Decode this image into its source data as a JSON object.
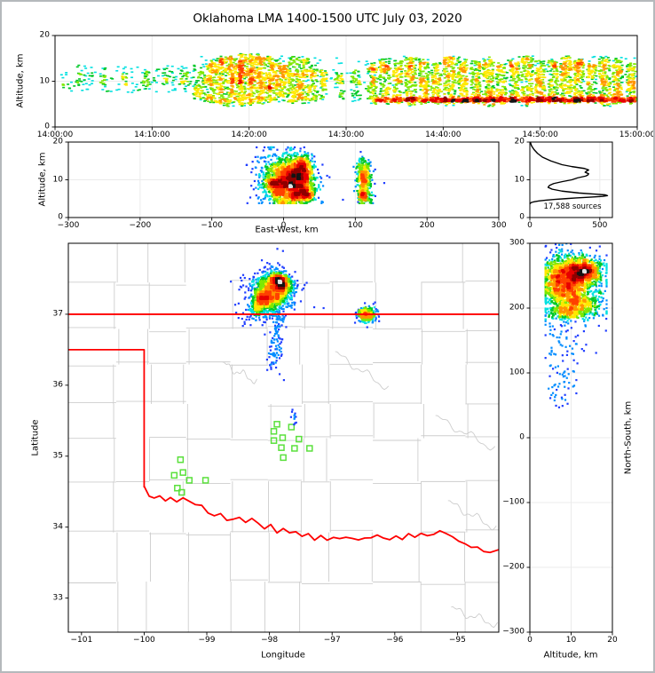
{
  "title": "Oklahoma LMA 1400-1500 UTC July 03, 2020",
  "colors": {
    "background": "#ffffff",
    "frame": "#000000",
    "grid": "#ebebeb",
    "county_lines": "#cdcdcd",
    "state_border": "#ff0000",
    "stations": "#5ae03c",
    "histogram_line": "#000000",
    "density_stops": [
      "#9400ff",
      "#1f3dff",
      "#008cff",
      "#00e0e0",
      "#00c828",
      "#7fe800",
      "#ffe800",
      "#ff9500",
      "#ff4000",
      "#e60000",
      "#8f0000",
      "#141414"
    ],
    "density_stops_time": [
      "#1f6aff",
      "#00a2ff",
      "#00e0e0",
      "#00c828",
      "#7fe800",
      "#ffe800",
      "#ff9500",
      "#ff4000",
      "#e60000",
      "#8f0000",
      "#141414"
    ],
    "core_white": "#e3e3e3"
  },
  "chart_data": [
    {
      "id": "time_height",
      "type": "scatter",
      "description": "VHF source altitude vs time, colored by point density",
      "xlabel": "",
      "ylabel": "Altitude, km",
      "x_units": "seconds after 14:00:00 UTC",
      "xlim": [
        0,
        3600
      ],
      "ylim": [
        0,
        20
      ],
      "xticks": {
        "values": [
          0,
          600,
          1200,
          1800,
          2400,
          3000,
          3600
        ],
        "labels": [
          "14:00:00",
          "14:10:00",
          "14:20:00",
          "14:30:00",
          "14:40:00",
          "14:50:00",
          "15:00:00"
        ]
      },
      "yticks": {
        "values": [
          0,
          10,
          20
        ],
        "labels": [
          "0",
          "10",
          "20"
        ]
      },
      "background_scatter": [
        {
          "t_range": [
            30,
            900
          ],
          "alt_range": [
            7.5,
            13.5
          ],
          "n": 130
        },
        {
          "t_range": [
            900,
            3600
          ],
          "alt_range": [
            6.0,
            15.5
          ],
          "n": 300
        }
      ],
      "low_band": {
        "t_range": [
          1980,
          3600
        ],
        "alt_range": [
          5.4,
          6.5
        ],
        "n": 900
      },
      "streaks": [
        [
          150,
          15,
          9,
          12.5,
          12
        ],
        [
          300,
          20,
          8.5,
          13,
          18
        ],
        [
          430,
          15,
          9,
          12,
          14
        ],
        [
          560,
          20,
          8,
          12.5,
          20
        ],
        [
          680,
          15,
          9,
          13,
          16
        ],
        [
          800,
          25,
          8,
          13,
          25
        ],
        [
          880,
          25,
          6,
          13.5,
          45
        ],
        [
          940,
          40,
          5.5,
          14,
          90
        ],
        [
          1000,
          40,
          5,
          15,
          130
        ],
        [
          1060,
          45,
          4.5,
          15.5,
          150
        ],
        [
          1120,
          40,
          5,
          15,
          140
        ],
        [
          1180,
          45,
          4.5,
          16,
          170
        ],
        [
          1240,
          40,
          5,
          16,
          160
        ],
        [
          1300,
          40,
          5,
          15.5,
          150
        ],
        [
          1360,
          35,
          5.5,
          15,
          120
        ],
        [
          1420,
          30,
          5.5,
          14.5,
          100
        ],
        [
          1480,
          35,
          5,
          15.5,
          120
        ],
        [
          1540,
          30,
          5,
          15,
          110
        ],
        [
          1600,
          25,
          5.5,
          13.5,
          70
        ],
        [
          1660,
          20,
          6,
          12.5,
          50
        ],
        [
          1760,
          25,
          6,
          12,
          35
        ],
        [
          1860,
          30,
          5.5,
          12.5,
          45
        ],
        [
          1960,
          30,
          5,
          14,
          90
        ],
        [
          2040,
          35,
          5,
          15,
          120
        ],
        [
          2120,
          30,
          5,
          14.5,
          110
        ],
        [
          2200,
          35,
          4.5,
          15.5,
          140
        ],
        [
          2280,
          30,
          5,
          15,
          120
        ],
        [
          2360,
          30,
          5,
          14,
          100
        ],
        [
          2440,
          35,
          4.5,
          15.5,
          150
        ],
        [
          2520,
          30,
          5,
          15,
          130
        ],
        [
          2600,
          30,
          5,
          14.5,
          110
        ],
        [
          2680,
          35,
          4.5,
          15,
          140
        ],
        [
          2760,
          30,
          5,
          14,
          100
        ],
        [
          2840,
          30,
          5,
          15,
          120
        ],
        [
          2920,
          35,
          4.5,
          15.5,
          140
        ],
        [
          3000,
          30,
          5,
          15,
          130
        ],
        [
          3080,
          30,
          5,
          14.5,
          110
        ],
        [
          3160,
          35,
          5,
          15.5,
          150
        ],
        [
          3240,
          30,
          5,
          15,
          130
        ],
        [
          3320,
          30,
          5,
          14,
          110
        ],
        [
          3400,
          35,
          4.5,
          15.5,
          140
        ],
        [
          3480,
          30,
          5,
          15,
          130
        ],
        [
          3560,
          25,
          5,
          14,
          100
        ]
      ]
    },
    {
      "id": "east_west_altitude",
      "type": "scatter",
      "description": "Altitude vs east-west distance; gaussian blobs [x_mean_km, x_sd, alt_mean_km, alt_sd, n]",
      "xlabel": "East-West, km",
      "ylabel": "Altitude, km",
      "xlim": [
        -300,
        300
      ],
      "ylim": [
        0,
        20
      ],
      "xticks": {
        "values": [
          -300,
          -200,
          -100,
          0,
          100,
          200,
          300
        ],
        "labels": [
          "−300",
          "−200",
          "−100",
          "0",
          "100",
          "200",
          "300"
        ]
      },
      "yticks": {
        "values": [
          0,
          10,
          20
        ],
        "labels": [
          "0",
          "10",
          "20"
        ]
      },
      "blobs": [
        [
          8,
          16,
          11,
          2.8,
          900
        ],
        [
          -8,
          10,
          8.5,
          2.0,
          450
        ],
        [
          25,
          8,
          13,
          1.6,
          350
        ],
        [
          20,
          9,
          9,
          1.5,
          300
        ],
        [
          30,
          7,
          6.3,
          1.0,
          220
        ],
        [
          5,
          22,
          10,
          4.2,
          380
        ],
        [
          14,
          12,
          5.6,
          0.9,
          180
        ],
        [
          112,
          5,
          11,
          2.6,
          260
        ],
        [
          112,
          4,
          5.7,
          0.8,
          90
        ],
        [
          113,
          6,
          8,
          2.5,
          120
        ]
      ]
    },
    {
      "id": "altitude_histogram",
      "type": "line",
      "description": "Source count vs altitude profile",
      "annotation": "17,588 sources",
      "xlim": [
        0,
        590
      ],
      "ylim": [
        0,
        20
      ],
      "xticks": {
        "values": [
          0,
          500
        ],
        "labels": [
          "0",
          "500"
        ]
      },
      "yticks": {
        "values": [
          0,
          10,
          20
        ],
        "labels": [
          "0",
          "10",
          "20"
        ]
      },
      "profile_alt_vs_count": [
        [
          20,
          3
        ],
        [
          19,
          12
        ],
        [
          18,
          30
        ],
        [
          17,
          55
        ],
        [
          16,
          90
        ],
        [
          15,
          150
        ],
        [
          14,
          230
        ],
        [
          13.5,
          300
        ],
        [
          13,
          390
        ],
        [
          12.6,
          420
        ],
        [
          12.3,
          405
        ],
        [
          12,
          395
        ],
        [
          11.6,
          420
        ],
        [
          11.3,
          415
        ],
        [
          11,
          400
        ],
        [
          10.5,
          340
        ],
        [
          10,
          300
        ],
        [
          9.5,
          230
        ],
        [
          9,
          170
        ],
        [
          8.5,
          140
        ],
        [
          8,
          130
        ],
        [
          7.5,
          160
        ],
        [
          7,
          230
        ],
        [
          6.5,
          350
        ],
        [
          6.2,
          470
        ],
        [
          6,
          540
        ],
        [
          5.8,
          555
        ],
        [
          5.6,
          520
        ],
        [
          5.4,
          430
        ],
        [
          5.2,
          330
        ],
        [
          5,
          255
        ],
        [
          4.8,
          180
        ],
        [
          4.6,
          115
        ],
        [
          4.4,
          65
        ],
        [
          4.2,
          32
        ],
        [
          4,
          12
        ],
        [
          3.8,
          4
        ],
        [
          3.6,
          0
        ]
      ]
    },
    {
      "id": "map",
      "type": "scatter",
      "description": "Plan view: latitude vs longitude with county lines, Oklahoma border in red, LMA stations as green squares; blobs [lon_mean, lon_sd, lat_mean, lat_sd, n]",
      "xlabel": "Longitude",
      "ylabel": "Latitude",
      "xlim": [
        -101.21,
        -94.34
      ],
      "ylim": [
        32.52,
        38.0
      ],
      "xticks": {
        "values": [
          -101,
          -100,
          -99,
          -98,
          -97,
          -96,
          -95
        ],
        "labels": [
          "−101",
          "−100",
          "−99",
          "−98",
          "−97",
          "−96",
          "−95"
        ]
      },
      "yticks": {
        "values": [
          33,
          34,
          35,
          36,
          37
        ],
        "labels": [
          "33",
          "34",
          "35",
          "36",
          "37"
        ]
      },
      "blobs": [
        [
          -97.95,
          0.13,
          37.32,
          0.12,
          1100
        ],
        [
          -98.12,
          0.07,
          37.2,
          0.07,
          360
        ],
        [
          -97.8,
          0.07,
          37.43,
          0.06,
          420
        ],
        [
          -97.87,
          0.05,
          37.48,
          0.05,
          200
        ],
        [
          -97.98,
          0.22,
          37.28,
          0.2,
          330
        ],
        [
          -98.2,
          0.06,
          37.05,
          0.06,
          120
        ],
        [
          -97.88,
          0.05,
          36.72,
          0.28,
          90
        ],
        [
          -97.95,
          0.04,
          36.35,
          0.12,
          25
        ],
        [
          -97.62,
          0.03,
          35.58,
          0.08,
          12
        ],
        [
          -96.45,
          0.07,
          37.0,
          0.055,
          330
        ]
      ],
      "state_border_segments": {
        "kansas_line_lat37": [
          [
            -101.21,
            37
          ],
          [
            -94.34,
            37
          ]
        ],
        "panhandle": [
          [
            -101.21,
            36.5
          ],
          [
            -100,
            36.5
          ],
          [
            -100,
            34.56
          ]
        ],
        "red_river": [
          [
            -100,
            34.56
          ],
          [
            -99.92,
            34.44
          ],
          [
            -99.84,
            34.41
          ],
          [
            -99.75,
            34.44
          ],
          [
            -99.66,
            34.37
          ],
          [
            -99.58,
            34.42
          ],
          [
            -99.48,
            34.36
          ],
          [
            -99.38,
            34.41
          ],
          [
            -99.28,
            34.36
          ],
          [
            -99.18,
            34.33
          ],
          [
            -99.08,
            34.29
          ],
          [
            -98.98,
            34.21
          ],
          [
            -98.88,
            34.16
          ],
          [
            -98.78,
            34.18
          ],
          [
            -98.68,
            34.11
          ],
          [
            -98.58,
            34.1
          ],
          [
            -98.48,
            34.14
          ],
          [
            -98.38,
            34.07
          ],
          [
            -98.28,
            34.12
          ],
          [
            -98.18,
            34.05
          ],
          [
            -98.08,
            33.99
          ],
          [
            -97.98,
            34.02
          ],
          [
            -97.88,
            33.93
          ],
          [
            -97.78,
            33.98
          ],
          [
            -97.68,
            33.91
          ],
          [
            -97.58,
            33.95
          ],
          [
            -97.48,
            33.86
          ],
          [
            -97.38,
            33.91
          ],
          [
            -97.28,
            33.82
          ],
          [
            -97.18,
            33.88
          ],
          [
            -97.08,
            33.81
          ],
          [
            -96.98,
            33.87
          ],
          [
            -96.88,
            33.82
          ],
          [
            -96.78,
            33.87
          ],
          [
            -96.68,
            33.84
          ],
          [
            -96.58,
            33.81
          ],
          [
            -96.48,
            33.86
          ],
          [
            -96.38,
            33.84
          ],
          [
            -96.28,
            33.89
          ],
          [
            -96.18,
            33.85
          ],
          [
            -96.08,
            33.82
          ],
          [
            -95.98,
            33.87
          ],
          [
            -95.88,
            33.84
          ],
          [
            -95.78,
            33.89
          ],
          [
            -95.68,
            33.87
          ],
          [
            -95.58,
            33.91
          ],
          [
            -95.48,
            33.87
          ],
          [
            -95.38,
            33.91
          ],
          [
            -95.28,
            33.94
          ],
          [
            -95.18,
            33.91
          ],
          [
            -95.08,
            33.87
          ],
          [
            -94.98,
            33.8
          ],
          [
            -94.88,
            33.76
          ],
          [
            -94.78,
            33.73
          ],
          [
            -94.68,
            33.7
          ],
          [
            -94.58,
            33.67
          ],
          [
            -94.48,
            33.64
          ],
          [
            -94.34,
            33.68
          ]
        ]
      },
      "stations_lon_lat": [
        [
          -99.42,
          34.95
        ],
        [
          -99.52,
          34.73
        ],
        [
          -99.38,
          34.77
        ],
        [
          -99.28,
          34.66
        ],
        [
          -99.47,
          34.55
        ],
        [
          -99.4,
          34.49
        ],
        [
          -99.02,
          34.66
        ],
        [
          -97.88,
          35.45
        ],
        [
          -97.65,
          35.41
        ],
        [
          -97.93,
          35.35
        ],
        [
          -97.93,
          35.22
        ],
        [
          -97.79,
          35.26
        ],
        [
          -97.53,
          35.24
        ],
        [
          -97.81,
          35.12
        ],
        [
          -97.6,
          35.11
        ],
        [
          -97.36,
          35.11
        ],
        [
          -97.78,
          34.98
        ]
      ]
    },
    {
      "id": "north_south_altitude",
      "type": "scatter",
      "description": "North-south distance vs altitude; blobs [alt_mean_km, alt_sd, ns_mean_km, ns_sd, n]",
      "xlabel": "Altitude, km",
      "ylabel": "North-South, km",
      "xlim": [
        0,
        20
      ],
      "ylim": [
        -300,
        300
      ],
      "xticks": {
        "values": [
          0,
          10,
          20
        ],
        "labels": [
          "0",
          "10",
          "20"
        ]
      },
      "yticks": {
        "values": [
          -300,
          -200,
          -100,
          0,
          100,
          200,
          300
        ],
        "labels": [
          "−300",
          "−200",
          "−100",
          "0",
          "100",
          "200",
          "300"
        ]
      },
      "blobs": [
        [
          11,
          3.2,
          255,
          13,
          900
        ],
        [
          13,
          2.0,
          258,
          8,
          300
        ],
        [
          8.5,
          2.6,
          228,
          12,
          500
        ],
        [
          12,
          3.0,
          207,
          9,
          320
        ],
        [
          10,
          4.5,
          235,
          32,
          420
        ],
        [
          6,
          1.2,
          250,
          15,
          180
        ],
        [
          9,
          2.8,
          193,
          6,
          200
        ],
        [
          8,
          2.5,
          140,
          40,
          80
        ],
        [
          7,
          2.0,
          70,
          18,
          25
        ]
      ]
    }
  ]
}
